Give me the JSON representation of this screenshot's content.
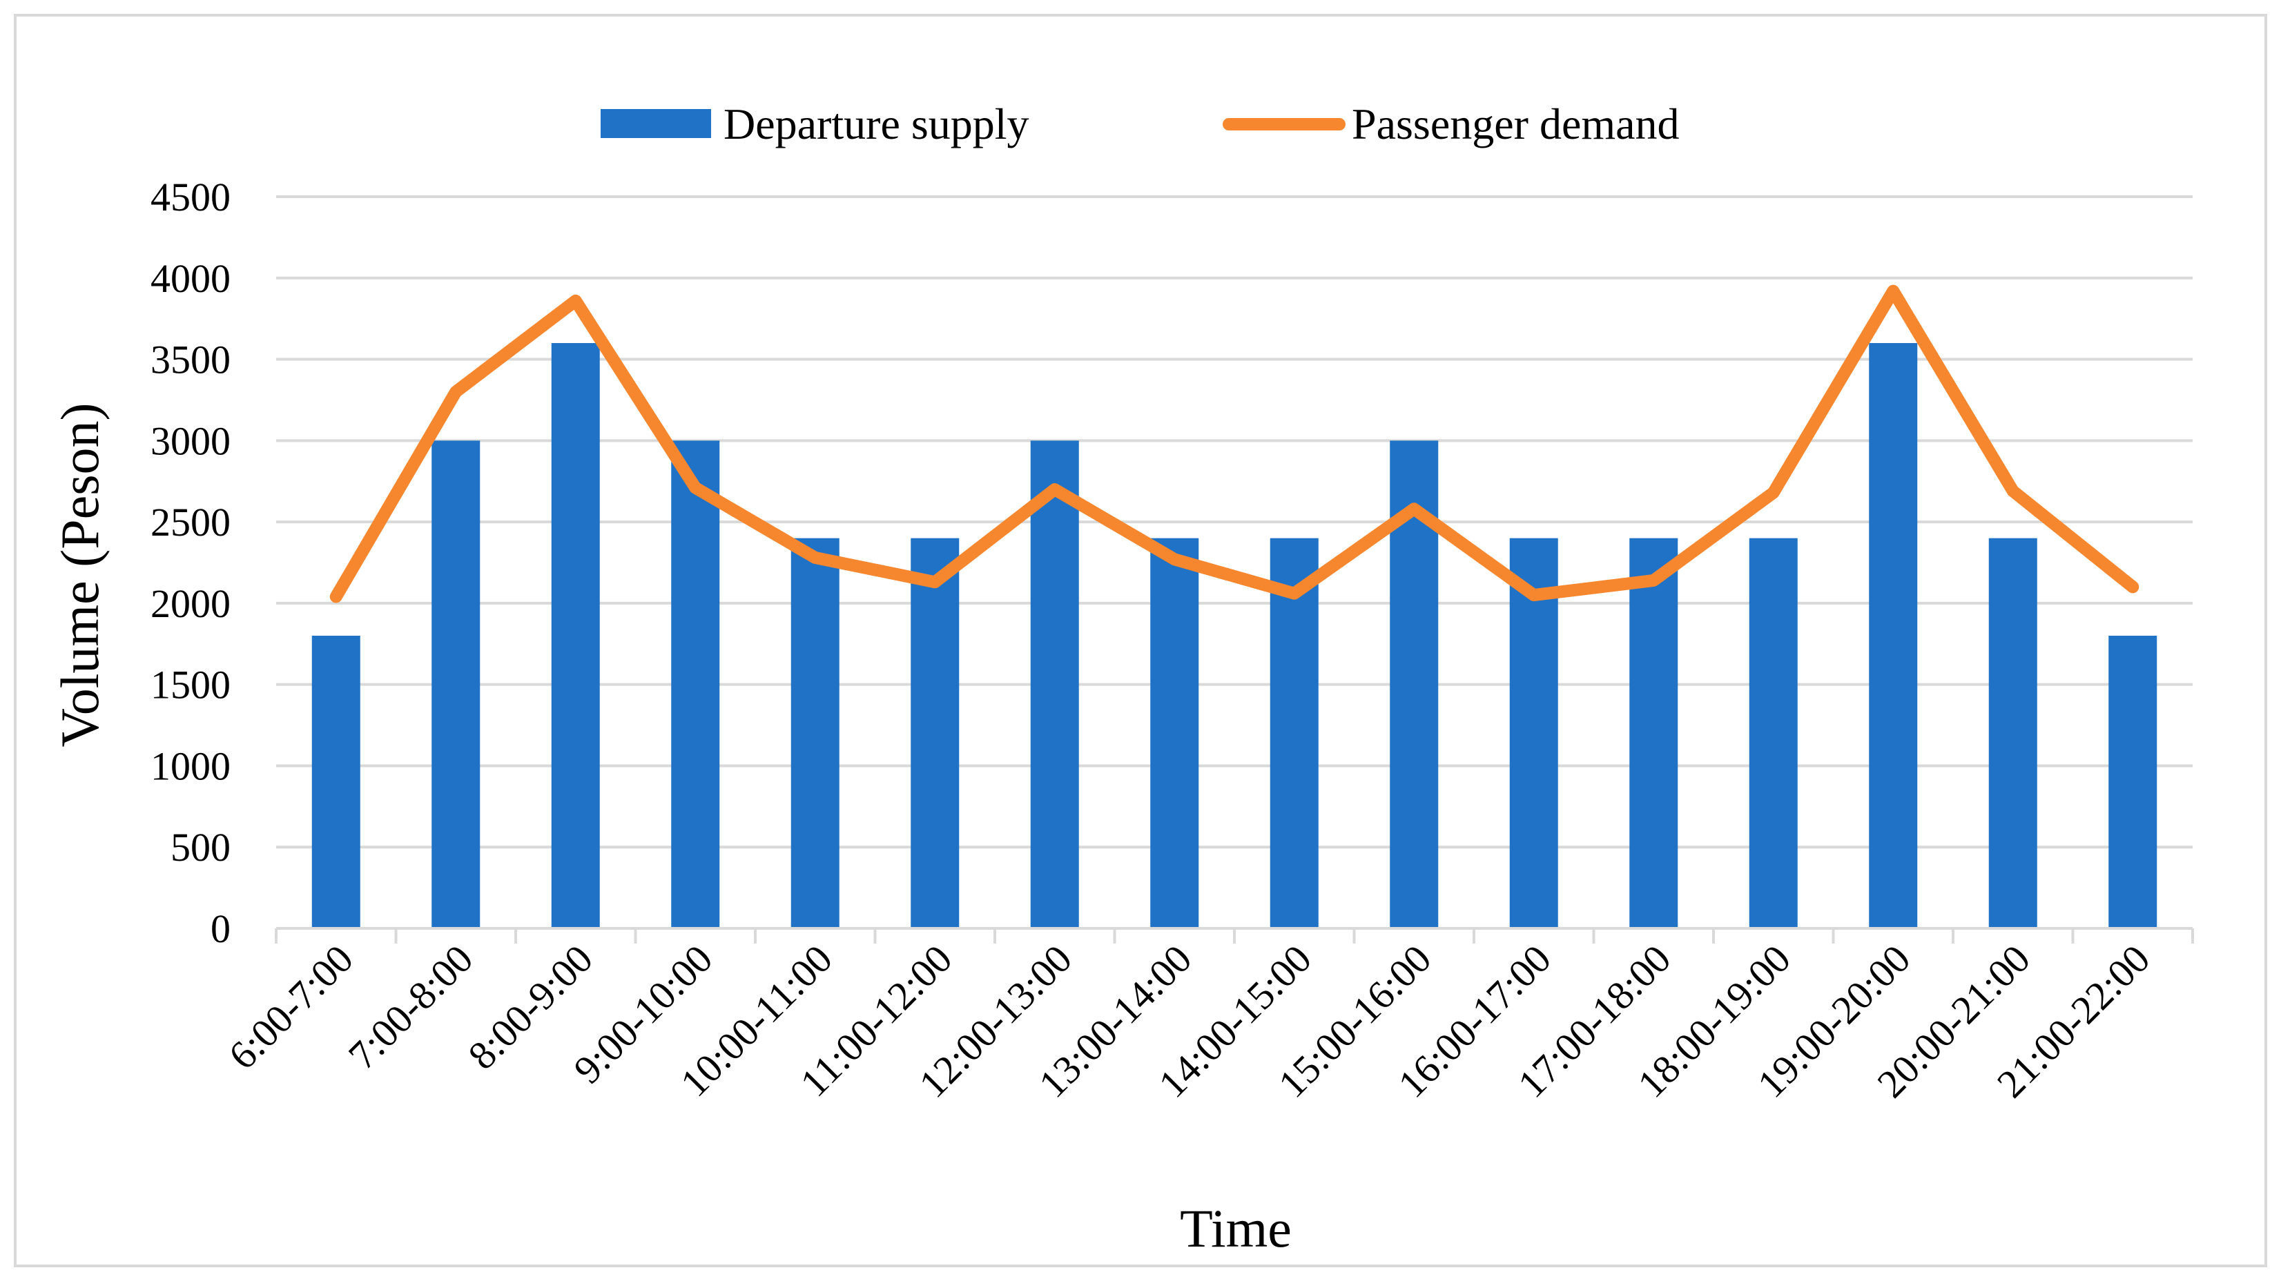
{
  "chart_data": {
    "type": "bar+line",
    "title": "",
    "xlabel": "Time",
    "ylabel": "Volume (Peson)",
    "ylim": [
      0,
      4500
    ],
    "yticks": [
      0,
      500,
      1000,
      1500,
      2000,
      2500,
      3000,
      3500,
      4000,
      4500
    ],
    "grid": true,
    "legend_position": "top",
    "categories": [
      "6:00-7:00",
      "7:00-8:00",
      "8:00-9:00",
      "9:00-10:00",
      "10:00-11:00",
      "11:00-12:00",
      "12:00-13:00",
      "13:00-14:00",
      "14:00-15:00",
      "15:00-16:00",
      "16:00-17:00",
      "17:00-18:00",
      "18:00-19:00",
      "19:00-20:00",
      "20:00-21:00",
      "21:00-22:00"
    ],
    "series": [
      {
        "name": "Departure supply",
        "type": "bar",
        "color": "#1F72C6",
        "values": [
          1800,
          3000,
          3600,
          3000,
          2400,
          2400,
          3000,
          2400,
          2400,
          3000,
          2400,
          2400,
          2400,
          3600,
          2400,
          1800
        ]
      },
      {
        "name": "Passenger demand",
        "type": "line",
        "color": "#F7872E",
        "values": [
          2040,
          3300,
          3860,
          2710,
          2280,
          2130,
          2700,
          2270,
          2060,
          2580,
          2050,
          2140,
          2680,
          3920,
          2690,
          2100
        ]
      }
    ]
  }
}
